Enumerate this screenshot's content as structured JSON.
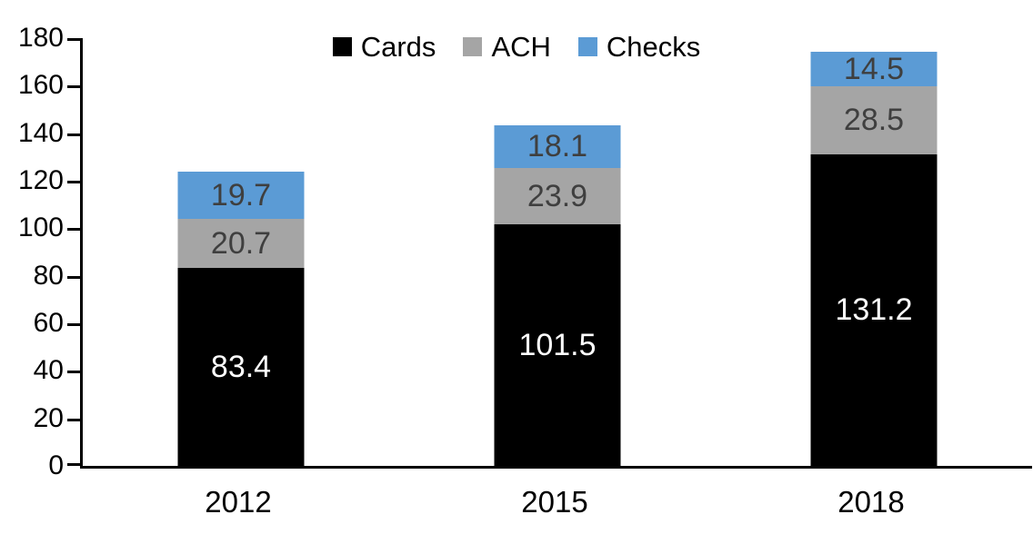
{
  "chart_data": {
    "type": "bar",
    "stacked": true,
    "title": "",
    "xlabel": "",
    "ylabel": "",
    "categories": [
      "2012",
      "2015",
      "2018"
    ],
    "series": [
      {
        "name": "Cards",
        "color": "#000000",
        "label_color": "#ffffff",
        "values": [
          83.4,
          101.5,
          131.2
        ]
      },
      {
        "name": "ACH",
        "color": "#a5a5a5",
        "label_color": "#3f3f3f",
        "values": [
          20.7,
          23.9,
          28.5
        ]
      },
      {
        "name": "Checks",
        "color": "#5b9bd5",
        "label_color": "#3f3f3f",
        "values": [
          19.7,
          18.1,
          14.5
        ]
      }
    ],
    "ylim": [
      0,
      180
    ],
    "yticks": [
      0,
      20,
      40,
      60,
      80,
      100,
      120,
      140,
      160,
      180
    ],
    "grid": false,
    "legend_position": "top",
    "axis_color": "#000000",
    "data_labels_shown": true
  }
}
